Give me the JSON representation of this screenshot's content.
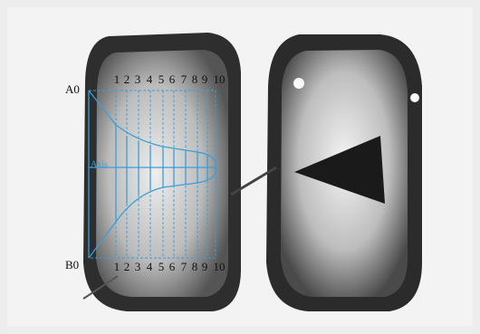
{
  "labels": {
    "top_left": "A0",
    "bottom_left": "B0",
    "axis": "Axis"
  },
  "top_numbers": [
    "1",
    "2",
    "3",
    "4",
    "5",
    "6",
    "7",
    "8",
    "9",
    "10"
  ],
  "bottom_numbers": [
    "1",
    "2",
    "3",
    "4",
    "5",
    "6",
    "7",
    "8",
    "9",
    "10"
  ]
}
